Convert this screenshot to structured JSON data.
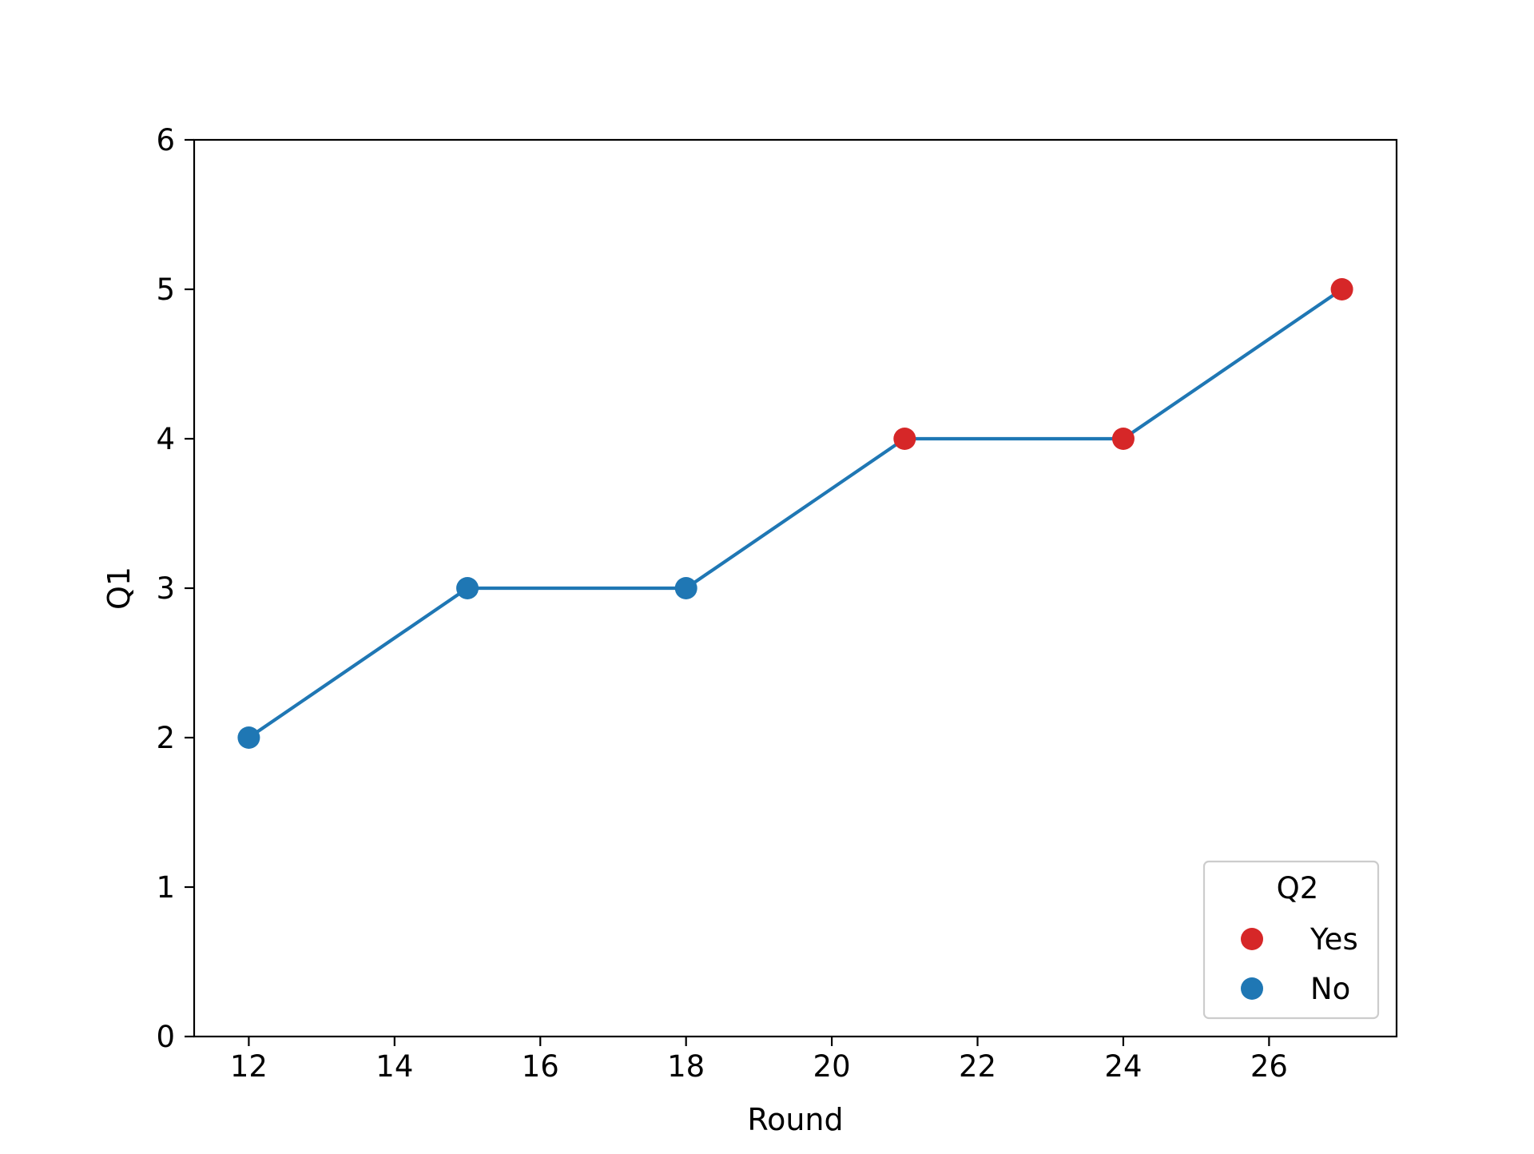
{
  "chart_data": {
    "type": "line",
    "xlabel": "Round",
    "ylabel": "Q1",
    "xlim": [
      11.25,
      27.75
    ],
    "ylim": [
      0,
      6
    ],
    "xticks": [
      12,
      14,
      16,
      18,
      20,
      22,
      24,
      26
    ],
    "yticks": [
      0,
      1,
      2,
      3,
      4,
      5,
      6
    ],
    "grid": false,
    "series": [
      {
        "x": [
          12,
          15,
          18,
          21,
          24,
          27
        ],
        "y": [
          2,
          3,
          3,
          4,
          4,
          5
        ],
        "line_color": "#1f77b4",
        "point_q2": [
          "No",
          "No",
          "No",
          "Yes",
          "Yes",
          "Yes"
        ]
      }
    ],
    "legend": {
      "title": "Q2",
      "placement": "lower-right",
      "entries": [
        {
          "label": "Yes",
          "color": "#d62728"
        },
        {
          "label": "No",
          "color": "#1f77b4"
        }
      ]
    },
    "marker_colors": {
      "Yes": "#d62728",
      "No": "#1f77b4"
    }
  }
}
